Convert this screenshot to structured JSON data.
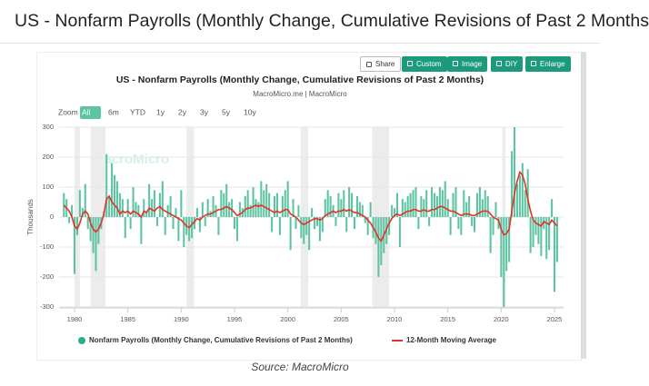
{
  "ui": {
    "page_title": "US - Nonfarm Payrolls (Monthly Change, Cumulative Revisions of Past 2 Months",
    "buttons": [
      "Share",
      "Custom",
      "Image",
      "DIY",
      "Enlarge"
    ],
    "zoom_label": "Zoom",
    "zoom_options": [
      "All",
      "6m",
      "YTD",
      "1y",
      "2y",
      "3y",
      "5y",
      "10y"
    ],
    "source": "Source: MacroMicro"
  },
  "chart_data": {
    "type": "combo",
    "title": "US - Nonfarm Payrolls (Monthly Change, Cumulative Revisions of Past 2 Months)",
    "subtitle": "MacroMicro.me | MacroMicro",
    "y_label": "Thousands",
    "watermark": "MacroMicro",
    "xlim": [
      1978.55,
      2025.85
    ],
    "xticks": [
      1980,
      1985,
      1990,
      1995,
      2000,
      2005,
      2010,
      2015,
      2020,
      2025
    ],
    "ylim": [
      -300,
      300
    ],
    "yticks": [
      -300,
      -200,
      -100,
      0,
      100,
      200,
      300
    ],
    "grid": true,
    "shaded_periods": [
      [
        1980,
        1980.5
      ],
      [
        1981.5,
        1982.9
      ],
      [
        1990.5,
        1991.2
      ],
      [
        2001.2,
        2001.9
      ],
      [
        2007.9,
        2009.5
      ],
      [
        2020.1,
        2020.4
      ]
    ],
    "x": [
      1979,
      1979.25,
      1979.5,
      1979.75,
      1980,
      1980.25,
      1980.5,
      1980.75,
      1981,
      1981.25,
      1981.5,
      1981.75,
      1982,
      1982.25,
      1982.5,
      1982.75,
      1983,
      1983.25,
      1983.5,
      1983.75,
      1984,
      1984.25,
      1984.5,
      1984.75,
      1985,
      1985.25,
      1985.5,
      1985.75,
      1986,
      1986.25,
      1986.5,
      1986.75,
      1987,
      1987.25,
      1987.5,
      1987.75,
      1988,
      1988.25,
      1988.5,
      1988.75,
      1989,
      1989.25,
      1989.5,
      1989.75,
      1990,
      1990.25,
      1990.5,
      1990.75,
      1991,
      1991.25,
      1991.5,
      1991.75,
      1992,
      1992.25,
      1992.5,
      1992.75,
      1993,
      1993.25,
      1993.5,
      1993.75,
      1994,
      1994.25,
      1994.5,
      1994.75,
      1995,
      1995.25,
      1995.5,
      1995.75,
      1996,
      1996.25,
      1996.5,
      1996.75,
      1997,
      1997.25,
      1997.5,
      1997.75,
      1998,
      1998.25,
      1998.5,
      1998.75,
      1999,
      1999.25,
      1999.5,
      1999.75,
      2000,
      2000.25,
      2000.5,
      2000.75,
      2001,
      2001.25,
      2001.5,
      2001.75,
      2002,
      2002.25,
      2002.5,
      2002.75,
      2003,
      2003.25,
      2003.5,
      2003.75,
      2004,
      2004.25,
      2004.5,
      2004.75,
      2005,
      2005.25,
      2005.5,
      2005.75,
      2006,
      2006.25,
      2006.5,
      2006.75,
      2007,
      2007.25,
      2007.5,
      2007.75,
      2008,
      2008.25,
      2008.5,
      2008.75,
      2009,
      2009.25,
      2009.5,
      2009.75,
      2010,
      2010.25,
      2010.5,
      2010.75,
      2011,
      2011.25,
      2011.5,
      2011.75,
      2012,
      2012.25,
      2012.5,
      2012.75,
      2013,
      2013.25,
      2013.5,
      2013.75,
      2014,
      2014.25,
      2014.5,
      2014.75,
      2015,
      2015.25,
      2015.5,
      2015.75,
      2016,
      2016.25,
      2016.5,
      2016.75,
      2017,
      2017.25,
      2017.5,
      2017.75,
      2018,
      2018.25,
      2018.5,
      2018.75,
      2019,
      2019.25,
      2019.5,
      2019.75,
      2020,
      2020.25,
      2020.5,
      2020.75,
      2021,
      2021.25,
      2021.5,
      2021.75,
      2022,
      2022.25,
      2022.5,
      2022.75,
      2023,
      2023.25,
      2023.5,
      2023.75,
      2024,
      2024.25,
      2024.5,
      2024.75,
      2025,
      2025.25
    ],
    "series": [
      {
        "name": "Nonfarm Payrolls (Monthly Change, Cumulative Revisions of Past 2 Months)",
        "type": "bar",
        "color": "#5cc3a3",
        "legend_color": "#23b08a",
        "values": [
          80,
          60,
          -20,
          40,
          -190,
          -60,
          90,
          30,
          110,
          -40,
          -80,
          -120,
          -180,
          -90,
          -40,
          20,
          210,
          70,
          180,
          140,
          120,
          80,
          60,
          -70,
          60,
          -40,
          100,
          50,
          40,
          -90,
          60,
          20,
          110,
          60,
          90,
          -30,
          80,
          120,
          -60,
          40,
          70,
          -40,
          30,
          -80,
          90,
          -100,
          -60,
          -80,
          -70,
          -40,
          30,
          -50,
          50,
          -30,
          60,
          20,
          70,
          40,
          -60,
          90,
          80,
          110,
          50,
          60,
          -40,
          -80,
          50,
          30,
          70,
          90,
          40,
          100,
          60,
          50,
          120,
          90,
          110,
          80,
          -50,
          70,
          80,
          -60,
          70,
          90,
          120,
          -110,
          60,
          -40,
          40,
          -70,
          -90,
          -60,
          -110,
          30,
          -40,
          -30,
          -80,
          -50,
          60,
          90,
          70,
          40,
          -30,
          80,
          60,
          90,
          -50,
          100,
          80,
          -40,
          70,
          50,
          40,
          -20,
          -60,
          50,
          -70,
          -90,
          -200,
          -160,
          -120,
          -90,
          -60,
          40,
          30,
          80,
          -100,
          60,
          50,
          70,
          80,
          90,
          100,
          -40,
          70,
          60,
          90,
          -30,
          100,
          80,
          70,
          100,
          90,
          120,
          60,
          -60,
          80,
          100,
          -40,
          -60,
          90,
          50,
          70,
          -30,
          -50,
          80,
          100,
          60,
          90,
          70,
          -120,
          -60,
          50,
          -40,
          -200,
          -300,
          -180,
          -150,
          220,
          300,
          110,
          140,
          180,
          90,
          160,
          -120,
          -100,
          -60,
          -90,
          -130,
          -40,
          -140,
          -110,
          60,
          -250,
          -150
        ]
      },
      {
        "name": "12-Month Moving Average",
        "type": "line",
        "color": "#e0342a",
        "values": [
          40,
          30,
          20,
          0,
          -30,
          -40,
          -20,
          10,
          20,
          10,
          -20,
          -40,
          -50,
          -40,
          -20,
          10,
          60,
          70,
          50,
          40,
          30,
          10,
          20,
          15,
          20,
          10,
          20,
          15,
          10,
          0,
          20,
          15,
          30,
          25,
          20,
          30,
          35,
          25,
          20,
          15,
          10,
          5,
          0,
          -5,
          -10,
          -20,
          -30,
          -35,
          -25,
          -15,
          -5,
          -10,
          0,
          5,
          10,
          10,
          15,
          20,
          25,
          25,
          30,
          35,
          30,
          25,
          15,
          5,
          10,
          15,
          25,
          30,
          30,
          35,
          40,
          35,
          40,
          35,
          30,
          25,
          20,
          15,
          20,
          15,
          20,
          25,
          25,
          10,
          5,
          0,
          -10,
          -20,
          -25,
          -20,
          -15,
          -10,
          -5,
          -5,
          -10,
          -5,
          5,
          10,
          15,
          20,
          15,
          20,
          20,
          25,
          20,
          25,
          20,
          15,
          15,
          10,
          5,
          0,
          -10,
          -20,
          -35,
          -50,
          -70,
          -80,
          -60,
          -40,
          -20,
          -5,
          5,
          10,
          5,
          10,
          15,
          20,
          20,
          25,
          25,
          20,
          20,
          25,
          20,
          20,
          25,
          25,
          30,
          35,
          35,
          30,
          25,
          20,
          20,
          15,
          10,
          5,
          10,
          10,
          10,
          5,
          5,
          10,
          15,
          20,
          20,
          20,
          10,
          0,
          -5,
          -10,
          -40,
          -60,
          -55,
          -40,
          20,
          80,
          120,
          150,
          140,
          110,
          60,
          20,
          -10,
          -20,
          -25,
          -30,
          -15,
          -20,
          -25,
          -10,
          -20,
          -30
        ]
      }
    ]
  }
}
